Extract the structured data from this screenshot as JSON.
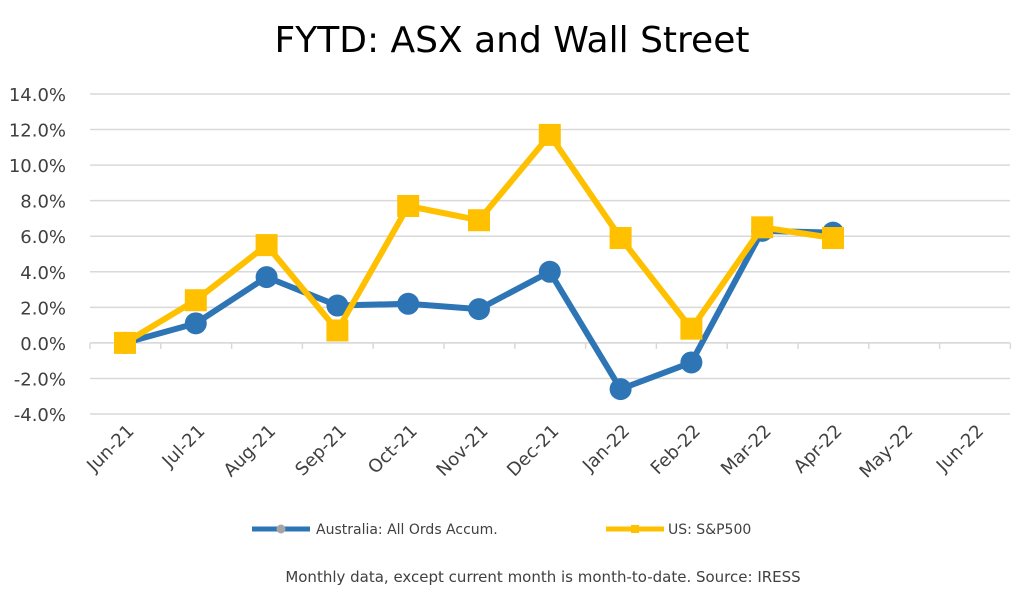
{
  "chart_data": {
    "type": "line",
    "title": "FYTD: ASX and Wall Street",
    "xlabel": "",
    "ylabel": "",
    "categories": [
      "Jun-21",
      "Jul-21",
      "Aug-21",
      "Sep-21",
      "Oct-21",
      "Nov-21",
      "Dec-21",
      "Jan-22",
      "Feb-22",
      "Mar-22",
      "Apr-22",
      "May-22",
      "Jun-22"
    ],
    "y_ticks": [
      "-4.0%",
      "-2.0%",
      "0.0%",
      "2.0%",
      "4.0%",
      "6.0%",
      "8.0%",
      "10.0%",
      "12.0%",
      "14.0%"
    ],
    "ylim": [
      -4,
      14
    ],
    "y_format": "percent",
    "grid": true,
    "legend_position": "bottom",
    "series": [
      {
        "name": "Australia: All Ords Accum.",
        "color": "#2E75B6",
        "marker": "circle",
        "values": [
          0.0,
          1.1,
          3.7,
          2.1,
          2.2,
          1.9,
          4.0,
          -2.6,
          -1.1,
          6.3,
          6.2,
          null,
          null
        ]
      },
      {
        "name": "US: S&P500",
        "color": "#FFC000",
        "marker": "square",
        "values": [
          0.0,
          2.4,
          5.5,
          0.7,
          7.7,
          6.9,
          11.7,
          5.9,
          0.8,
          6.5,
          5.9,
          null,
          null
        ]
      }
    ],
    "footnote": "Monthly data, except current month is month-to-date.   Source: IRESS"
  }
}
